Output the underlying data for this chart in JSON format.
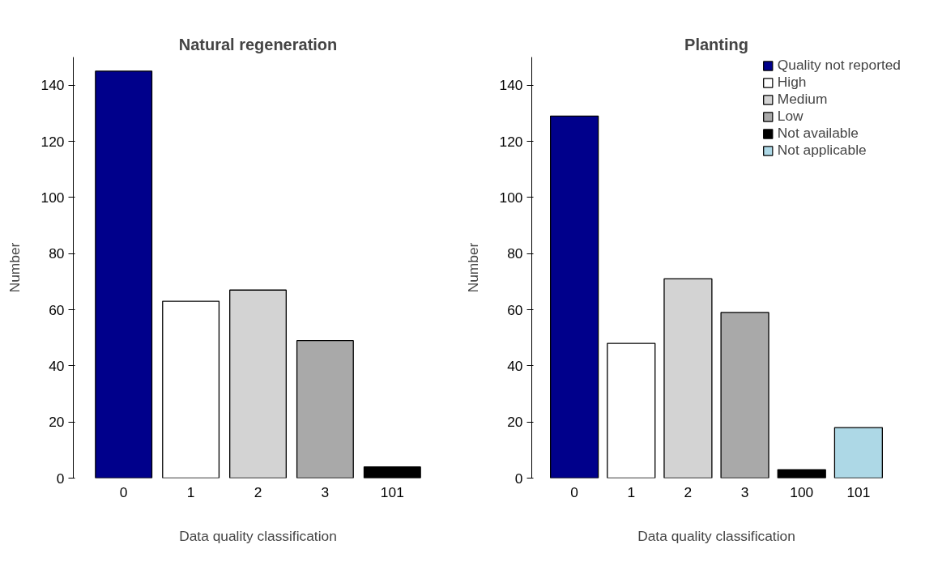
{
  "chart_data": [
    {
      "type": "bar",
      "title": "Natural regeneration",
      "xlabel": "Data quality classification",
      "ylabel": "Number",
      "categories": [
        "0",
        "1",
        "2",
        "3",
        "101"
      ],
      "values": [
        145,
        63,
        67,
        49,
        4
      ],
      "colors": [
        "#00008b",
        "#ffffff",
        "#d3d3d3",
        "#a9a9a9",
        "#000000"
      ],
      "ylim": [
        0,
        150
      ],
      "yticks": [
        0,
        20,
        40,
        60,
        80,
        100,
        120,
        140
      ],
      "grid": false,
      "legend": false
    },
    {
      "type": "bar",
      "title": "Planting",
      "xlabel": "Data quality classification",
      "ylabel": "Number",
      "categories": [
        "0",
        "1",
        "2",
        "3",
        "100",
        "101"
      ],
      "series": [
        {
          "name": "Quality not reported",
          "color": "#00008b",
          "values": [
            129,
            null,
            null,
            null,
            null,
            null
          ]
        },
        {
          "name": "High",
          "color": "#ffffff",
          "values": [
            null,
            48,
            null,
            null,
            null,
            null
          ]
        },
        {
          "name": "Medium",
          "color": "#d3d3d3",
          "values": [
            null,
            null,
            71,
            null,
            null,
            null
          ]
        },
        {
          "name": "Low",
          "color": "#a9a9a9",
          "values": [
            null,
            null,
            null,
            59,
            null,
            null
          ]
        },
        {
          "name": "Not available",
          "color": "#000000",
          "values": [
            null,
            null,
            null,
            null,
            3,
            null
          ]
        },
        {
          "name": "Not applicable",
          "color": "#add8e6",
          "values": [
            null,
            null,
            null,
            null,
            null,
            18
          ]
        }
      ],
      "ylim": [
        0,
        150
      ],
      "yticks": [
        0,
        20,
        40,
        60,
        80,
        100,
        120,
        140
      ],
      "grid": false,
      "legend": "top right"
    }
  ]
}
